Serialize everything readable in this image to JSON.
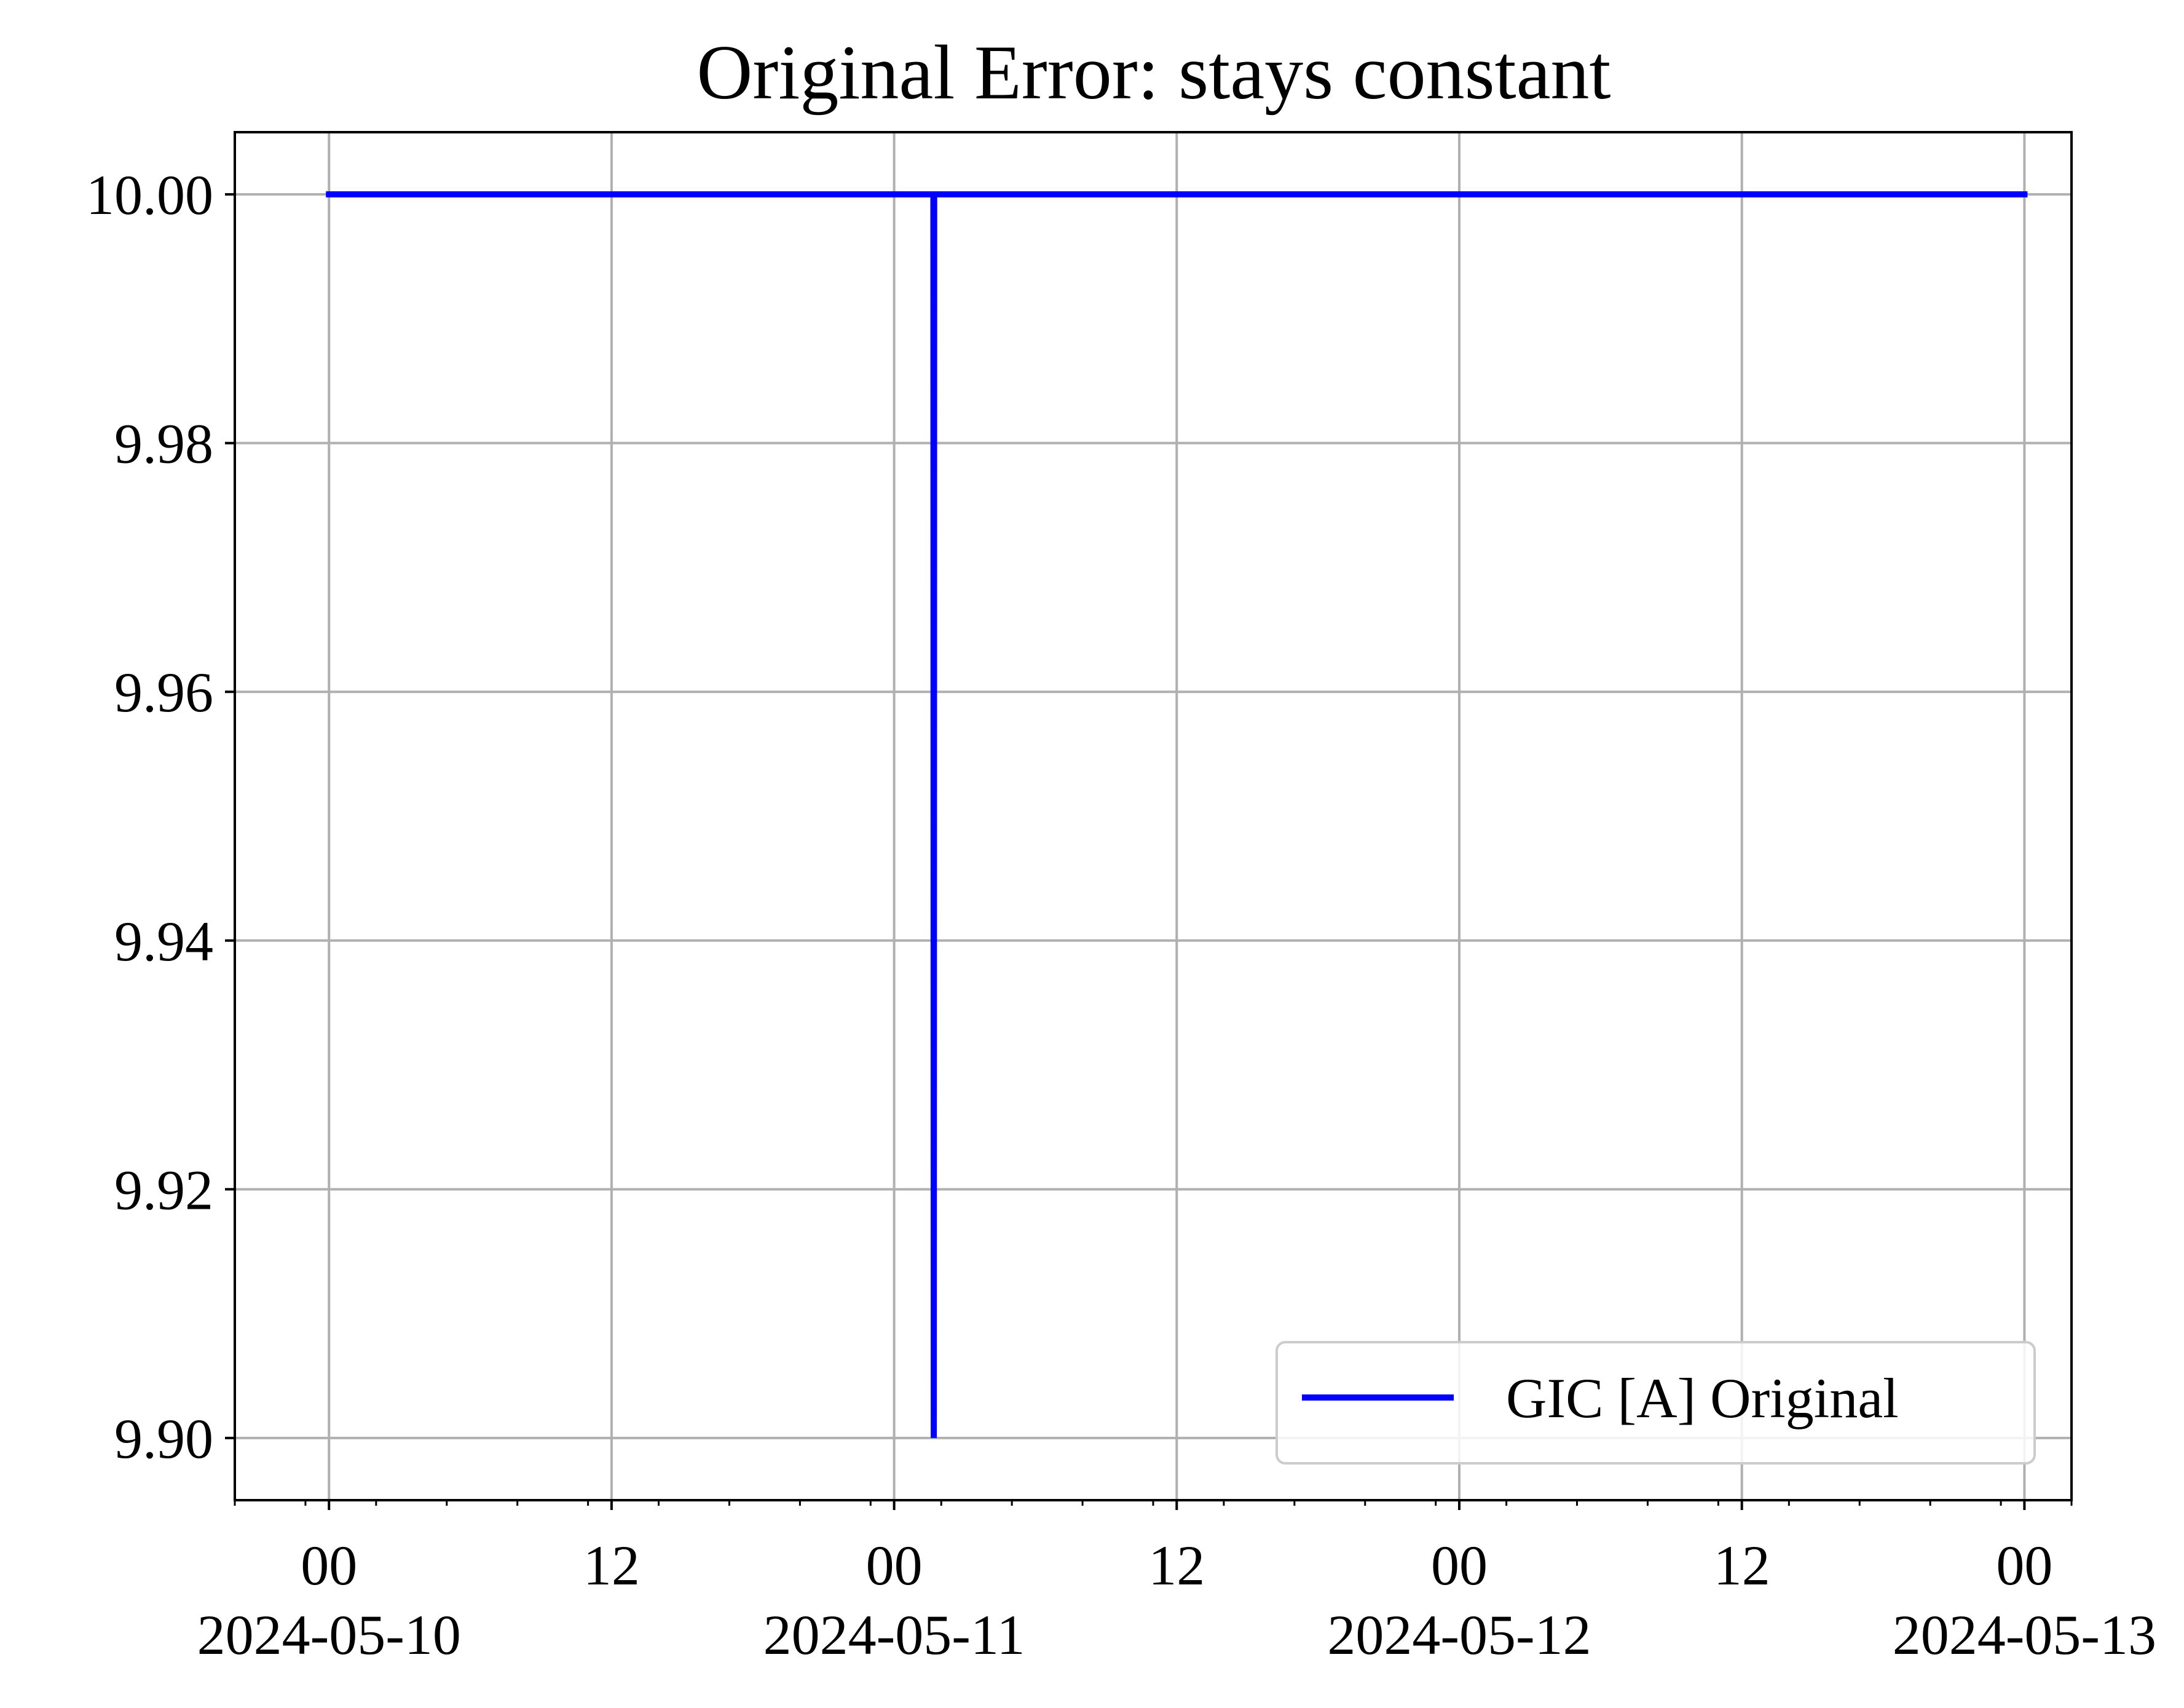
{
  "chart_data": {
    "type": "line",
    "title": "Original Error: stays constant",
    "xlabel": "",
    "ylabel": "",
    "x_range": [
      "2024-05-09T20:00",
      "2024-05-13T02:00"
    ],
    "ylim": [
      9.895,
      10.005
    ],
    "grid": true,
    "legend_position": "lower-right",
    "x_ticks": [
      {
        "value": "2024-05-10T00:00",
        "label": "00",
        "date": "2024-05-10"
      },
      {
        "value": "2024-05-10T12:00",
        "label": "12",
        "date": ""
      },
      {
        "value": "2024-05-11T00:00",
        "label": "00",
        "date": "2024-05-11"
      },
      {
        "value": "2024-05-11T12:00",
        "label": "12",
        "date": ""
      },
      {
        "value": "2024-05-12T00:00",
        "label": "00",
        "date": "2024-05-12"
      },
      {
        "value": "2024-05-12T12:00",
        "label": "12",
        "date": ""
      },
      {
        "value": "2024-05-13T00:00",
        "label": "00",
        "date": "2024-05-13"
      }
    ],
    "y_ticks": [
      {
        "value": 9.9,
        "label": "9.90"
      },
      {
        "value": 9.92,
        "label": "9.92"
      },
      {
        "value": 9.94,
        "label": "9.94"
      },
      {
        "value": 9.96,
        "label": "9.96"
      },
      {
        "value": 9.98,
        "label": "9.98"
      },
      {
        "value": 10.0,
        "label": "10.00"
      }
    ],
    "series": [
      {
        "name": "GIC [A] Original",
        "color": "#0000ff",
        "points": [
          {
            "x": "2024-05-10T00:00",
            "y": 10.0
          },
          {
            "x": "2024-05-11T01:40",
            "y": 10.0
          },
          {
            "x": "2024-05-11T01:41",
            "y": 9.9
          },
          {
            "x": "2024-05-11T01:42",
            "y": 10.0
          },
          {
            "x": "2024-05-13T00:00",
            "y": 10.0
          }
        ]
      }
    ]
  }
}
